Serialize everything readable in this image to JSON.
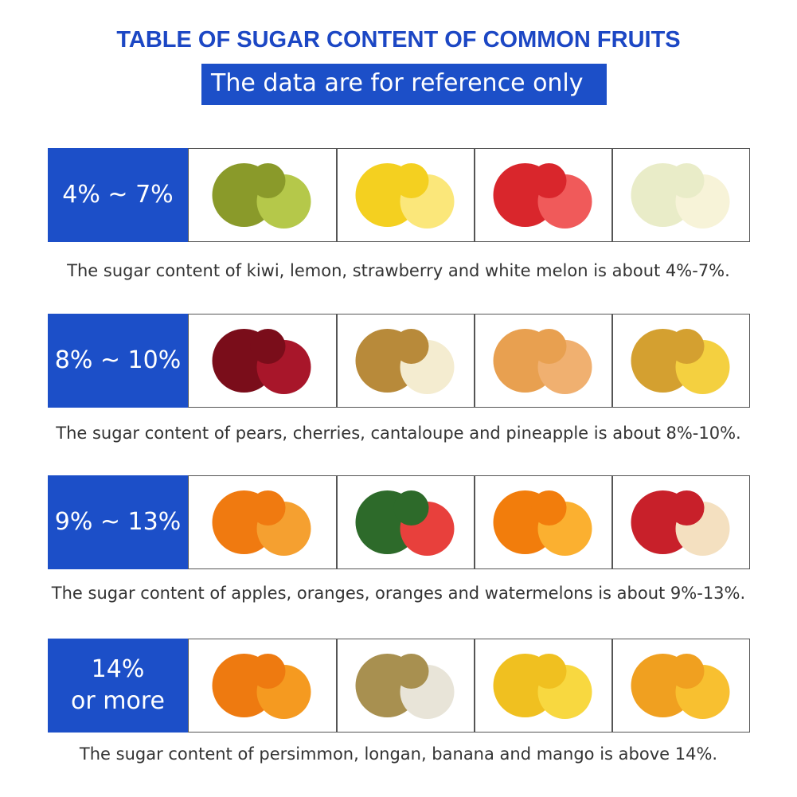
{
  "header": {
    "title": "TABLE OF SUGAR CONTENT OF COMMON FRUITS",
    "subtitle": "The data are for reference only"
  },
  "rows": [
    {
      "label": [
        "4% ~ 7%"
      ],
      "caption": "The sugar content of kiwi, lemon, strawberry and white melon is about 4%-7%."
    },
    {
      "label": [
        "8% ~ 10%"
      ],
      "caption": "The sugar content of pears, cherries, cantaloupe and pineapple is about 8%-10%."
    },
    {
      "label": [
        "9% ~ 13%"
      ],
      "caption": "The sugar content of apples, oranges, oranges and watermelons is about 9%-13%."
    },
    {
      "label": [
        "14%",
        "or more"
      ],
      "caption": "The sugar content of persimmon, longan, banana and mango is above 14%."
    }
  ]
}
